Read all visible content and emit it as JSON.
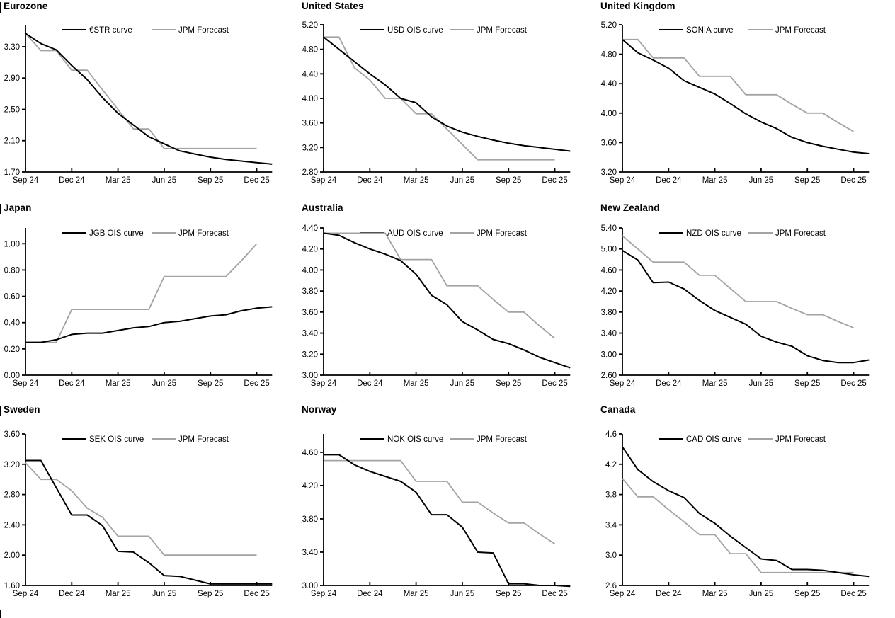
{
  "page": {
    "background": "#ffffff"
  },
  "charts_common": {
    "x_months": [
      "Sep-24",
      "Oct-24",
      "Nov-24",
      "Dec-24",
      "Jan-25",
      "Feb-25",
      "Mar-25",
      "Apr-25",
      "May-25",
      "Jun-25",
      "Jul-25",
      "Aug-25",
      "Sep-25",
      "Oct-25",
      "Nov-25",
      "Dec-25",
      "Jan-26"
    ],
    "x_tick_labels": [
      "Sep 24",
      "Dec 24",
      "Mar 25",
      "Jun 25",
      "Sep 25",
      "Dec 25"
    ],
    "x_tick_month_indices": [
      0,
      3,
      6,
      9,
      12,
      15
    ],
    "forecast_label": "JPM Forecast",
    "colors": {
      "market_line": "#000000",
      "forecast_line": "#a3a3a3",
      "axis": "#000000",
      "text": "#000000"
    },
    "legend_position": "top-inside",
    "grid": false
  },
  "chart_data": [
    {
      "type": "line",
      "title": "Eurozone",
      "slug": "eurozone",
      "section_bar": true,
      "y_ticks": [
        "3.30",
        "2.90",
        "2.50",
        "2.10",
        "1.70"
      ],
      "ylim": [
        1.7,
        3.58
      ],
      "series": [
        {
          "name": "€STR curve",
          "role": "market",
          "values": [
            3.47,
            3.34,
            3.26,
            3.06,
            2.88,
            2.65,
            2.45,
            2.3,
            2.15,
            2.06,
            1.97,
            1.93,
            1.89,
            1.86,
            1.84,
            1.82,
            1.8
          ]
        },
        {
          "name": "JPM Forecast",
          "role": "forecast",
          "values": [
            3.47,
            3.25,
            3.25,
            3.0,
            3.0,
            2.75,
            2.5,
            2.25,
            2.25,
            2.0,
            2.0,
            2.0,
            2.0,
            2.0,
            2.0,
            2.0,
            null
          ]
        }
      ]
    },
    {
      "type": "line",
      "title": "United States",
      "slug": "united-states",
      "section_bar": false,
      "y_ticks": [
        "5.20",
        "4.80",
        "4.40",
        "4.00",
        "3.60",
        "3.20",
        "2.80"
      ],
      "ylim": [
        2.8,
        5.2
      ],
      "series": [
        {
          "name": "USD OIS curve",
          "role": "market",
          "values": [
            5.0,
            4.8,
            4.6,
            4.4,
            4.22,
            4.0,
            3.93,
            3.7,
            3.55,
            3.45,
            3.38,
            3.32,
            3.27,
            3.23,
            3.2,
            3.17,
            3.14
          ]
        },
        {
          "name": "JPM Forecast",
          "role": "forecast",
          "values": [
            5.0,
            5.0,
            4.5,
            4.3,
            4.0,
            4.0,
            3.75,
            3.75,
            3.5,
            3.25,
            3.0,
            3.0,
            3.0,
            3.0,
            3.0,
            3.0,
            null
          ]
        }
      ]
    },
    {
      "type": "line",
      "title": "United Kingdom",
      "slug": "united-kingdom",
      "section_bar": false,
      "y_ticks": [
        "5.20",
        "4.80",
        "4.40",
        "4.00",
        "3.60",
        "3.20"
      ],
      "ylim": [
        3.2,
        5.2
      ],
      "series": [
        {
          "name": "SONIA curve",
          "role": "market",
          "values": [
            5.0,
            4.82,
            4.72,
            4.61,
            4.44,
            4.35,
            4.26,
            4.13,
            3.99,
            3.88,
            3.79,
            3.67,
            3.6,
            3.55,
            3.51,
            3.47,
            3.45
          ]
        },
        {
          "name": "JPM Forecast",
          "role": "forecast",
          "values": [
            5.0,
            5.0,
            4.75,
            4.75,
            4.75,
            4.5,
            4.5,
            4.5,
            4.25,
            4.25,
            4.25,
            4.12,
            4.0,
            4.0,
            3.87,
            3.75,
            null
          ]
        }
      ]
    },
    {
      "type": "line",
      "title": "Japan",
      "slug": "japan",
      "section_bar": true,
      "y_ticks": [
        "1.00",
        "0.80",
        "0.60",
        "0.40",
        "0.20",
        "0.00"
      ],
      "ylim": [
        0.0,
        1.12
      ],
      "series": [
        {
          "name": "JGB OIS curve",
          "role": "market",
          "values": [
            0.25,
            0.25,
            0.27,
            0.31,
            0.32,
            0.32,
            0.34,
            0.36,
            0.37,
            0.4,
            0.41,
            0.43,
            0.45,
            0.46,
            0.49,
            0.51,
            0.52
          ]
        },
        {
          "name": "JPM Forecast",
          "role": "forecast",
          "values": [
            0.25,
            0.25,
            0.25,
            0.5,
            0.5,
            0.5,
            0.5,
            0.5,
            0.5,
            0.75,
            0.75,
            0.75,
            0.75,
            0.75,
            0.87,
            1.0,
            null
          ]
        }
      ]
    },
    {
      "type": "line",
      "title": "Australia",
      "slug": "australia",
      "section_bar": false,
      "y_ticks": [
        "4.40",
        "4.20",
        "4.00",
        "3.80",
        "3.60",
        "3.40",
        "3.20",
        "3.00"
      ],
      "ylim": [
        3.0,
        4.4
      ],
      "series": [
        {
          "name": "AUD OIS curve",
          "role": "market",
          "values": [
            4.35,
            4.33,
            4.26,
            4.2,
            4.15,
            4.09,
            3.96,
            3.76,
            3.67,
            3.51,
            3.43,
            3.34,
            3.3,
            3.24,
            3.17,
            3.12,
            3.07
          ]
        },
        {
          "name": "JPM Forecast",
          "role": "forecast",
          "values": [
            4.35,
            4.35,
            4.35,
            4.35,
            4.35,
            4.1,
            4.1,
            4.1,
            3.85,
            3.85,
            3.85,
            3.72,
            3.6,
            3.6,
            3.47,
            3.35,
            null
          ]
        }
      ]
    },
    {
      "type": "line",
      "title": "New Zealand",
      "slug": "new-zealand",
      "section_bar": false,
      "y_ticks": [
        "5.40",
        "5.00",
        "4.60",
        "4.20",
        "3.80",
        "3.40",
        "3.00",
        "2.60"
      ],
      "ylim": [
        2.6,
        5.4
      ],
      "series": [
        {
          "name": "NZD OIS curve",
          "role": "market",
          "values": [
            4.97,
            4.79,
            4.36,
            4.37,
            4.24,
            4.02,
            3.83,
            3.7,
            3.57,
            3.34,
            3.23,
            3.15,
            2.97,
            2.88,
            2.84,
            2.84,
            2.89
          ]
        },
        {
          "name": "JPM Forecast",
          "role": "forecast",
          "values": [
            5.25,
            5.0,
            4.75,
            4.75,
            4.75,
            4.5,
            4.5,
            4.25,
            4.0,
            4.0,
            4.0,
            3.87,
            3.75,
            3.75,
            3.62,
            3.5,
            null
          ]
        }
      ]
    },
    {
      "type": "line",
      "title": "Sweden",
      "slug": "sweden",
      "section_bar": true,
      "y_ticks": [
        "3.60",
        "3.20",
        "2.80",
        "2.40",
        "2.00",
        "1.60"
      ],
      "ylim": [
        1.6,
        3.6
      ],
      "series": [
        {
          "name": "SEK OIS curve",
          "role": "market",
          "values": [
            3.25,
            3.25,
            2.89,
            2.53,
            2.53,
            2.39,
            2.05,
            2.04,
            1.9,
            1.73,
            1.72,
            1.67,
            1.62,
            1.62,
            1.62,
            1.62,
            1.62
          ]
        },
        {
          "name": "JPM Forecast",
          "role": "forecast",
          "values": [
            3.22,
            3.0,
            3.0,
            2.85,
            2.62,
            2.5,
            2.25,
            2.25,
            2.25,
            2.0,
            2.0,
            2.0,
            2.0,
            2.0,
            2.0,
            2.0,
            null
          ]
        }
      ]
    },
    {
      "type": "line",
      "title": "Norway",
      "slug": "norway",
      "section_bar": false,
      "y_ticks": [
        "4.60",
        "4.20",
        "3.80",
        "3.40",
        "3.00"
      ],
      "ylim": [
        3.0,
        4.82
      ],
      "series": [
        {
          "name": "NOK OIS curve",
          "role": "market",
          "values": [
            4.57,
            4.57,
            4.45,
            4.37,
            4.31,
            4.25,
            4.12,
            3.85,
            3.85,
            3.7,
            3.4,
            3.39,
            3.02,
            3.02,
            3.0,
            3.0,
            2.99
          ]
        },
        {
          "name": "JPM Forecast",
          "role": "forecast",
          "values": [
            4.5,
            4.5,
            4.5,
            4.5,
            4.5,
            4.5,
            4.25,
            4.25,
            4.25,
            4.0,
            4.0,
            3.87,
            3.75,
            3.75,
            3.62,
            3.5,
            null
          ]
        }
      ]
    },
    {
      "type": "line",
      "title": "Canada",
      "slug": "canada",
      "section_bar": false,
      "y_ticks": [
        "4.6",
        "4.2",
        "3.8",
        "3.4",
        "3.0",
        "2.6"
      ],
      "ylim": [
        2.6,
        4.6
      ],
      "series": [
        {
          "name": "CAD OIS curve",
          "role": "market",
          "values": [
            4.43,
            4.13,
            3.97,
            3.85,
            3.76,
            3.55,
            3.42,
            3.25,
            3.1,
            2.95,
            2.93,
            2.81,
            2.81,
            2.8,
            2.77,
            2.74,
            2.72
          ]
        },
        {
          "name": "JPM Forecast",
          "role": "forecast",
          "values": [
            4.01,
            3.77,
            3.77,
            3.6,
            3.44,
            3.27,
            3.27,
            3.02,
            3.02,
            2.77,
            2.77,
            2.77,
            2.77,
            2.77,
            2.77,
            2.77,
            null
          ]
        }
      ]
    }
  ]
}
